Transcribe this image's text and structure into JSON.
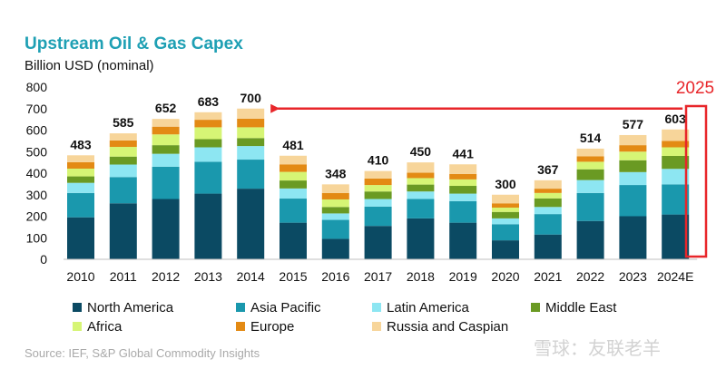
{
  "chart_data": {
    "type": "bar",
    "stacked": true,
    "title": "Upstream Oil & Gas Capex",
    "subtitle": "Billion USD (nominal)",
    "categories": [
      "2010",
      "2011",
      "2012",
      "2013",
      "2014",
      "2015",
      "2016",
      "2017",
      "2018",
      "2019",
      "2020",
      "2021",
      "2022",
      "2023",
      "2024E"
    ],
    "totals": [
      483,
      585,
      652,
      683,
      700,
      481,
      348,
      410,
      450,
      441,
      300,
      367,
      514,
      577,
      603
    ],
    "ylim": [
      0,
      800
    ],
    "yticks": [
      0,
      100,
      200,
      300,
      400,
      500,
      600,
      700,
      800
    ],
    "grid": false,
    "legend_position": "bottom",
    "series": [
      {
        "name": "North America",
        "color": "#0b4a63",
        "values": [
          195,
          260,
          280,
          305,
          328,
          170,
          95,
          155,
          190,
          170,
          88,
          115,
          178,
          200,
          208
        ]
      },
      {
        "name": "Asia Pacific",
        "color": "#1a98ad",
        "values": [
          113,
          122,
          150,
          148,
          135,
          112,
          88,
          90,
          90,
          100,
          75,
          95,
          130,
          145,
          140
        ]
      },
      {
        "name": "Latin America",
        "color": "#8de6f2",
        "values": [
          47,
          58,
          60,
          67,
          63,
          47,
          30,
          35,
          35,
          35,
          27,
          33,
          60,
          60,
          72
        ]
      },
      {
        "name": "Middle East",
        "color": "#6a9a23",
        "values": [
          30,
          37,
          40,
          38,
          37,
          37,
          30,
          35,
          32,
          36,
          30,
          40,
          50,
          55,
          60
        ]
      },
      {
        "name": "Africa",
        "color": "#d6f575",
        "values": [
          36,
          45,
          50,
          55,
          50,
          40,
          35,
          30,
          30,
          30,
          20,
          25,
          35,
          40,
          40
        ]
      },
      {
        "name": "Europe",
        "color": "#e38a14",
        "values": [
          30,
          30,
          36,
          35,
          40,
          35,
          30,
          30,
          25,
          25,
          20,
          20,
          25,
          30,
          30
        ]
      },
      {
        "name": "Russia and Caspian",
        "color": "#f7d59a",
        "values": [
          32,
          33,
          36,
          35,
          47,
          40,
          40,
          35,
          48,
          45,
          40,
          39,
          36,
          47,
          53
        ]
      }
    ],
    "annotation": {
      "label": "2025",
      "from_category": "2024E",
      "to_category": "2014",
      "color": "#e8262a"
    }
  },
  "source": "Source: IEF, S&P Global  Commodity  Insights",
  "watermark": "雪球：友联老羊"
}
